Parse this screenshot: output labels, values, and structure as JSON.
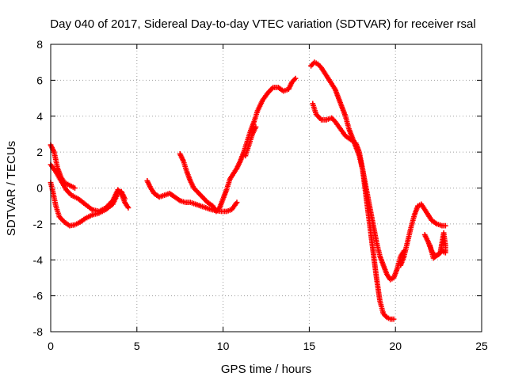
{
  "chart_data": {
    "type": "scatter",
    "title": "Day 040 of 2017, Sidereal Day-to-day VTEC variation (SDTVAR) for receiver rsal",
    "xlabel": "GPS time / hours",
    "ylabel": "SDTVAR / TECUs",
    "xlim": [
      0,
      25
    ],
    "ylim": [
      -8,
      8
    ],
    "xticks": [
      0,
      5,
      10,
      15,
      20,
      25
    ],
    "yticks": [
      -8,
      -6,
      -4,
      -2,
      0,
      2,
      4,
      6,
      8
    ],
    "grid": true,
    "marker": "plus",
    "color": "#ff0000",
    "series": [
      {
        "values": [
          [
            0.0,
            2.4
          ],
          [
            0.2,
            2.0
          ],
          [
            0.4,
            1.1
          ],
          [
            0.6,
            0.6
          ],
          [
            0.8,
            0.3
          ],
          [
            1.0,
            0.2
          ],
          [
            1.2,
            0.1
          ],
          [
            1.4,
            0.0
          ]
        ]
      },
      {
        "values": [
          [
            0.0,
            1.3
          ],
          [
            0.3,
            0.9
          ],
          [
            0.6,
            0.4
          ],
          [
            0.9,
            -0.1
          ],
          [
            1.2,
            -0.4
          ],
          [
            1.6,
            -0.6
          ],
          [
            2.0,
            -0.9
          ],
          [
            2.4,
            -1.2
          ],
          [
            2.8,
            -1.3
          ],
          [
            3.2,
            -1.1
          ],
          [
            3.6,
            -0.7
          ],
          [
            3.9,
            -0.1
          ],
          [
            4.1,
            -0.3
          ],
          [
            4.3,
            -0.8
          ],
          [
            4.5,
            -1.1
          ]
        ]
      },
      {
        "values": [
          [
            0.0,
            0.3
          ],
          [
            0.15,
            -0.3
          ],
          [
            0.3,
            -1.0
          ],
          [
            0.5,
            -1.6
          ],
          [
            0.8,
            -1.9
          ],
          [
            1.1,
            -2.1
          ],
          [
            1.4,
            -2.05
          ],
          [
            1.7,
            -1.9
          ],
          [
            2.0,
            -1.7
          ],
          [
            2.4,
            -1.5
          ],
          [
            2.8,
            -1.4
          ],
          [
            3.2,
            -1.2
          ],
          [
            3.6,
            -0.9
          ],
          [
            3.9,
            -0.3
          ],
          [
            4.1,
            -0.2
          ],
          [
            4.3,
            -0.6
          ]
        ]
      },
      {
        "values": [
          [
            5.6,
            0.4
          ],
          [
            5.8,
            0.0
          ],
          [
            6.0,
            -0.3
          ],
          [
            6.3,
            -0.5
          ],
          [
            6.6,
            -0.4
          ],
          [
            6.9,
            -0.3
          ],
          [
            7.2,
            -0.5
          ],
          [
            7.5,
            -0.7
          ],
          [
            7.8,
            -0.8
          ],
          [
            8.1,
            -0.8
          ],
          [
            8.4,
            -0.9
          ],
          [
            8.7,
            -1.0
          ],
          [
            9.0,
            -1.1
          ],
          [
            9.3,
            -1.2
          ],
          [
            9.6,
            -1.25
          ],
          [
            9.9,
            -1.3
          ],
          [
            10.2,
            -1.3
          ],
          [
            10.5,
            -1.2
          ],
          [
            10.8,
            -0.8
          ]
        ]
      },
      {
        "values": [
          [
            7.5,
            1.9
          ],
          [
            7.7,
            1.5
          ],
          [
            7.9,
            0.9
          ],
          [
            8.1,
            0.4
          ],
          [
            8.3,
            0.0
          ],
          [
            8.5,
            -0.2
          ],
          [
            8.8,
            -0.5
          ],
          [
            9.1,
            -0.8
          ],
          [
            9.4,
            -1.0
          ],
          [
            9.6,
            -1.3
          ],
          [
            9.8,
            -1.1
          ],
          [
            10.0,
            -0.6
          ],
          [
            10.2,
            -0.1
          ],
          [
            10.4,
            0.5
          ],
          [
            10.6,
            0.8
          ],
          [
            10.8,
            1.1
          ],
          [
            11.0,
            1.5
          ],
          [
            11.2,
            2.0
          ],
          [
            11.4,
            2.6
          ],
          [
            11.6,
            3.2
          ],
          [
            11.8,
            3.7
          ],
          [
            12.0,
            4.3
          ],
          [
            12.3,
            4.9
          ],
          [
            12.6,
            5.3
          ],
          [
            12.9,
            5.6
          ],
          [
            13.2,
            5.6
          ],
          [
            13.5,
            5.4
          ],
          [
            13.8,
            5.5
          ],
          [
            14.0,
            5.9
          ],
          [
            14.2,
            6.1
          ]
        ]
      },
      {
        "values": [
          [
            11.3,
            1.8
          ],
          [
            11.5,
            2.4
          ],
          [
            11.7,
            3.0
          ],
          [
            11.9,
            3.4
          ]
        ]
      },
      {
        "values": [
          [
            15.1,
            6.8
          ],
          [
            15.3,
            7.0
          ],
          [
            15.5,
            6.9
          ],
          [
            15.7,
            6.7
          ],
          [
            15.9,
            6.4
          ],
          [
            16.1,
            6.1
          ],
          [
            16.3,
            5.8
          ],
          [
            16.5,
            5.5
          ],
          [
            16.7,
            5.0
          ],
          [
            16.9,
            4.5
          ],
          [
            17.1,
            4.0
          ],
          [
            17.3,
            3.3
          ],
          [
            17.5,
            2.8
          ],
          [
            17.7,
            2.3
          ],
          [
            17.9,
            1.8
          ],
          [
            18.1,
            1.0
          ],
          [
            18.3,
            0.0
          ],
          [
            18.5,
            -1.0
          ],
          [
            18.7,
            -2.0
          ],
          [
            18.9,
            -3.0
          ],
          [
            19.1,
            -3.8
          ],
          [
            19.3,
            -4.3
          ],
          [
            19.5,
            -4.8
          ],
          [
            19.7,
            -5.1
          ],
          [
            19.9,
            -5.0
          ],
          [
            20.1,
            -4.5
          ],
          [
            20.3,
            -3.8
          ],
          [
            20.5,
            -3.5
          ]
        ]
      },
      {
        "values": [
          [
            15.2,
            4.7
          ],
          [
            15.4,
            4.1
          ],
          [
            15.7,
            3.8
          ],
          [
            16.0,
            3.8
          ],
          [
            16.3,
            3.9
          ],
          [
            16.5,
            3.7
          ],
          [
            16.8,
            3.3
          ],
          [
            17.1,
            2.9
          ],
          [
            17.4,
            2.7
          ],
          [
            17.7,
            2.5
          ],
          [
            17.9,
            2.0
          ],
          [
            18.1,
            1.0
          ],
          [
            18.3,
            -0.5
          ],
          [
            18.5,
            -2.0
          ],
          [
            18.7,
            -3.5
          ],
          [
            18.9,
            -5.0
          ],
          [
            19.1,
            -6.3
          ],
          [
            19.3,
            -7.0
          ],
          [
            19.5,
            -7.2
          ],
          [
            19.7,
            -7.3
          ],
          [
            19.9,
            -7.3
          ]
        ]
      },
      {
        "values": [
          [
            20.3,
            -4.3
          ],
          [
            20.5,
            -3.8
          ],
          [
            20.7,
            -3.0
          ],
          [
            20.9,
            -2.2
          ],
          [
            21.1,
            -1.5
          ],
          [
            21.3,
            -1.0
          ],
          [
            21.5,
            -0.9
          ],
          [
            21.7,
            -1.2
          ],
          [
            21.9,
            -1.5
          ],
          [
            22.1,
            -1.8
          ],
          [
            22.4,
            -2.0
          ],
          [
            22.7,
            -2.1
          ],
          [
            22.9,
            -2.1
          ]
        ]
      },
      {
        "values": [
          [
            21.7,
            -2.6
          ],
          [
            21.9,
            -3.0
          ],
          [
            22.1,
            -3.5
          ],
          [
            22.3,
            -3.8
          ],
          [
            22.5,
            -3.7
          ],
          [
            22.7,
            -3.5
          ],
          [
            22.9,
            -3.6
          ],
          [
            22.9,
            -3.2
          ],
          [
            22.8,
            -2.5
          ],
          [
            22.6,
            -3.6
          ],
          [
            22.2,
            -3.9
          ],
          [
            22.0,
            -3.2
          ]
        ]
      }
    ]
  }
}
